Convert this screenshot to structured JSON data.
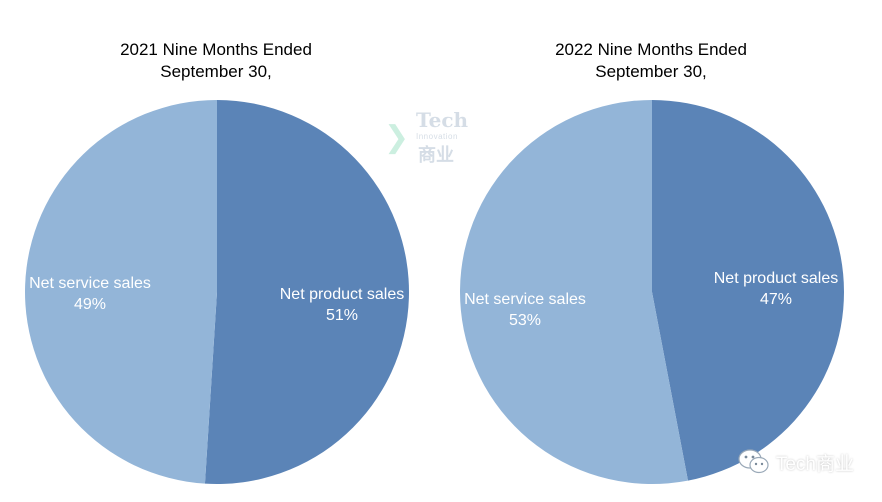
{
  "chart_data": [
    {
      "type": "pie",
      "title_line1": "2021 Nine Months Ended",
      "title_line2": "September 30,",
      "slices": [
        {
          "label": "Net product sales",
          "value": 51,
          "percent_label": "51%",
          "color": "#5b84b7"
        },
        {
          "label": "Net service sales",
          "value": 49,
          "percent_label": "49%",
          "color": "#93b5d8"
        }
      ]
    },
    {
      "type": "pie",
      "title_line1": "2022 Nine Months Ended",
      "title_line2": "September 30,",
      "slices": [
        {
          "label": "Net product sales",
          "value": 47,
          "percent_label": "47%",
          "color": "#5b84b7"
        },
        {
          "label": "Net service sales",
          "value": 53,
          "percent_label": "53%",
          "color": "#93b5d8"
        }
      ]
    }
  ],
  "watermark": {
    "word": "Tech",
    "sub": "Innovation",
    "cn": "商业"
  },
  "brand": {
    "label": "Tech商业",
    "icon": "wechat-icon"
  }
}
